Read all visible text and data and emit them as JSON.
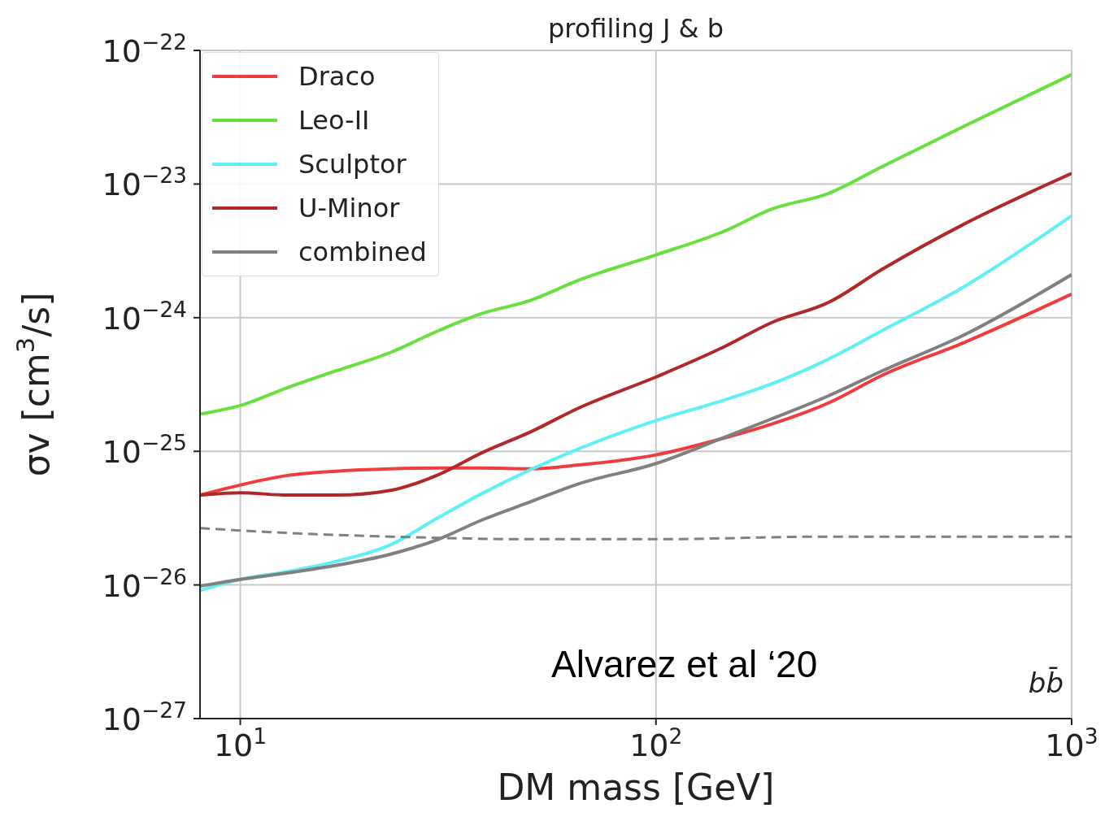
{
  "chart_data": {
    "type": "line",
    "title": "profiling J & b",
    "xlabel": "DM mass [GeV]",
    "ylabel": "σv [cm$^{3}$/s]",
    "log": "xy",
    "grid": true,
    "legend": "top left",
    "marker": "none",
    "xlim": [
      8,
      1000
    ],
    "ylim": [
      1e-27,
      1e-22
    ],
    "xticks": [
      {
        "value": 10,
        "label": "10$^{1}$"
      },
      {
        "value": 100,
        "label": "10$^{2}$"
      },
      {
        "value": 1000,
        "label": "10$^{3}$"
      }
    ],
    "yticks": [
      {
        "value": 1e-27,
        "label": "10$^{−27}$"
      },
      {
        "value": 1e-26,
        "label": "10$^{−26}$"
      },
      {
        "value": 1e-25,
        "label": "10$^{−25}$"
      },
      {
        "value": 1e-24,
        "label": "10$^{−24}$"
      },
      {
        "value": 1e-23,
        "label": "10$^{−23}$"
      },
      {
        "value": 1e-22,
        "label": "10$^{−22}$"
      }
    ],
    "x": [
      8,
      10,
      13,
      17,
      23,
      30,
      38,
      50,
      65,
      100,
      145,
      190,
      260,
      350,
      550,
      1000
    ],
    "series": [
      {
        "name": "Draco",
        "color": "#f03c3c",
        "values": [
          4.7e-26,
          5.6e-26,
          6.6e-26,
          7.1e-26,
          7.4e-26,
          7.5e-26,
          7.5e-26,
          7.4e-26,
          7.9e-26,
          9.4e-26,
          1.25e-25,
          1.6e-25,
          2.3e-25,
          3.7e-25,
          6.5e-25,
          1.5e-24
        ]
      },
      {
        "name": "Leo-II",
        "color": "#66e03a",
        "values": [
          1.9e-25,
          2.2e-25,
          3e-25,
          4e-25,
          5.5e-25,
          8e-25,
          1.07e-24,
          1.35e-24,
          1.9e-24,
          2.95e-24,
          4.4e-24,
          6.5e-24,
          8.5e-24,
          1.35e-23,
          2.7e-23,
          6.6e-23
        ]
      },
      {
        "name": "Sculptor",
        "color": "#5ef0f5",
        "values": [
          9.1e-27,
          1.1e-26,
          1.26e-26,
          1.5e-26,
          2e-26,
          3.2e-26,
          4.8e-26,
          7.3e-26,
          1.04e-25,
          1.7e-25,
          2.4e-25,
          3.2e-25,
          4.9e-25,
          8e-25,
          1.7e-24,
          5.8e-24
        ]
      },
      {
        "name": "U-Minor",
        "color": "#b02828",
        "values": [
          4.7e-26,
          4.9e-26,
          4.7e-26,
          4.7e-26,
          5.1e-26,
          6.7e-26,
          9.7e-26,
          1.4e-25,
          2.1e-25,
          3.6e-25,
          6e-25,
          9.2e-25,
          1.3e-24,
          2.3e-24,
          5e-24,
          1.2e-23
        ]
      },
      {
        "name": "combined",
        "color": "#808080",
        "values": [
          9.8e-27,
          1.1e-26,
          1.23e-26,
          1.4e-26,
          1.7e-26,
          2.2e-26,
          3.05e-26,
          4.2e-26,
          5.7e-26,
          8.1e-26,
          1.26e-25,
          1.75e-25,
          2.6e-25,
          4e-25,
          7.4e-25,
          2.1e-24
        ]
      },
      {
        "color": "#808080",
        "line_style": "dashed",
        "x": [
          8,
          13,
          23,
          50,
          100,
          260,
          1000
        ],
        "values": [
          2.66e-26,
          2.45e-26,
          2.3e-26,
          2.2e-26,
          2.2e-26,
          2.3e-26,
          2.3e-26
        ]
      }
    ],
    "annotations": [
      "Alvarez et al ‘20",
      "bb̄"
    ]
  }
}
